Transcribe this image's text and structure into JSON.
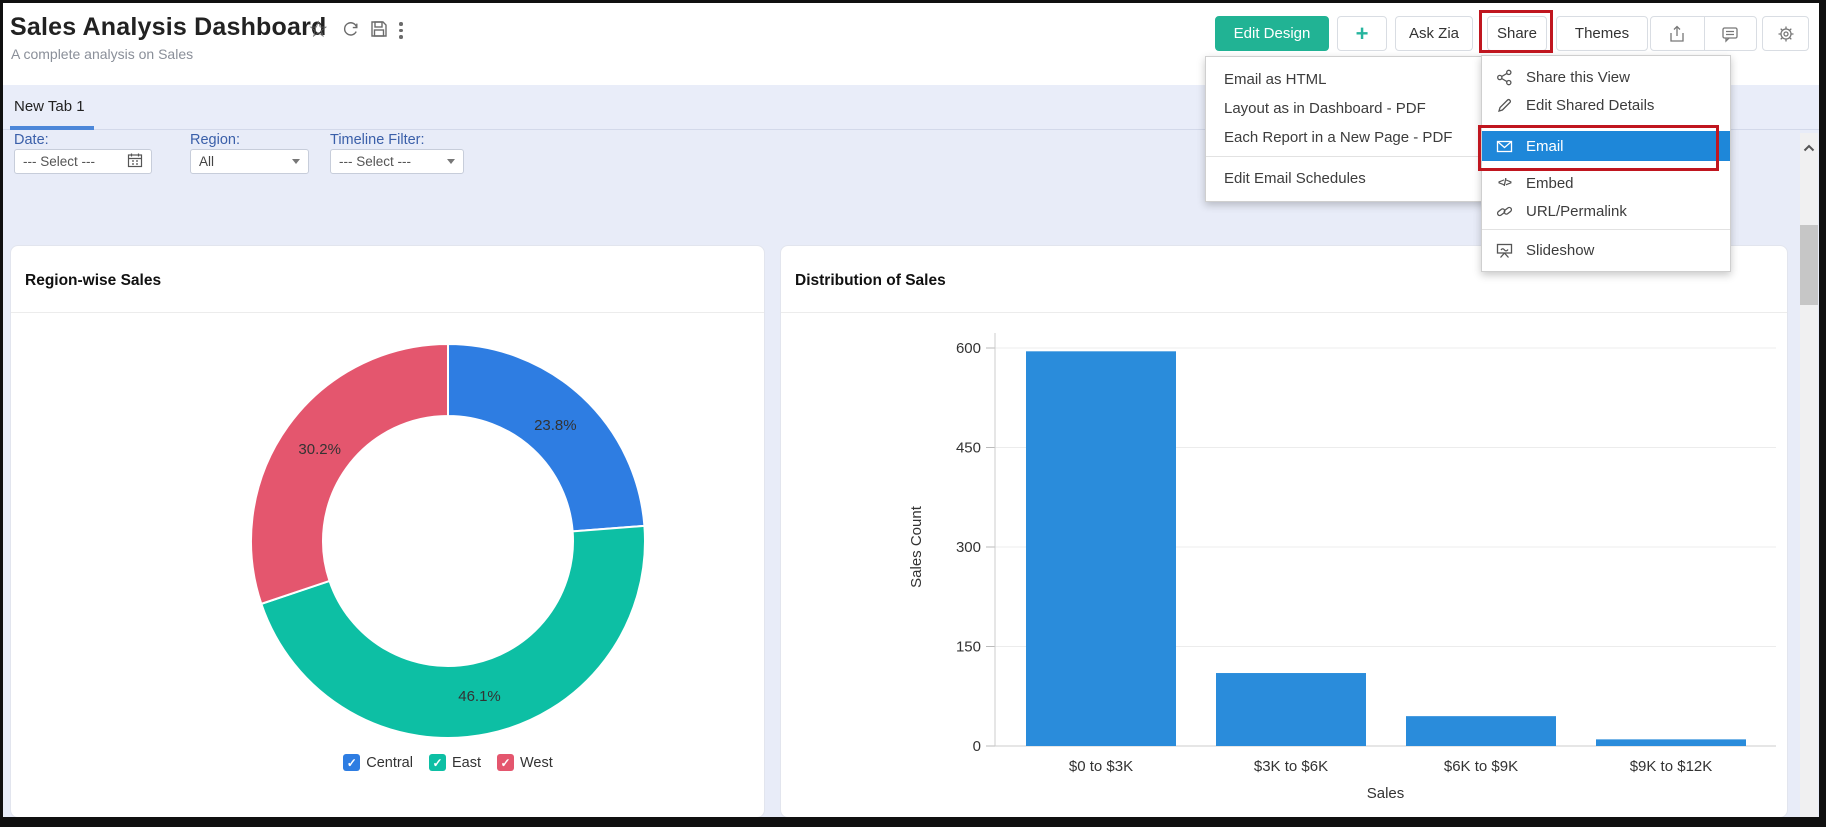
{
  "header": {
    "title": "Sales Analysis Dashboard",
    "subtitle": "A complete analysis on Sales"
  },
  "toolbar": {
    "edit_design": "Edit Design",
    "plus": "+",
    "ask_zia": "Ask Zia",
    "share": "Share",
    "themes": "Themes"
  },
  "tabs": {
    "active": "New Tab 1"
  },
  "filters": [
    {
      "label": "Date:",
      "value": "--- Select ---",
      "icon": "calendar-icon"
    },
    {
      "label": "Region:",
      "value": "All",
      "icon": "caret-down-icon"
    },
    {
      "label": "Timeline Filter:",
      "value": "--- Select ---",
      "icon": "caret-down-icon"
    }
  ],
  "email_menu": {
    "items": [
      {
        "label": "Email as HTML"
      },
      {
        "label": "Layout as in Dashboard - PDF"
      },
      {
        "label": "Each Report in a New Page - PDF"
      }
    ],
    "footer_item": {
      "label": "Edit Email Schedules"
    }
  },
  "share_menu": {
    "items": [
      {
        "label": "Share this View",
        "icon": "share-nodes-icon",
        "selected": false
      },
      {
        "label": "Edit Shared Details",
        "icon": "pencil-icon",
        "selected": false
      },
      {
        "label": "Email",
        "icon": "envelope-icon",
        "selected": true
      },
      {
        "label": "Embed",
        "icon": "code-icon",
        "selected": false
      },
      {
        "label": "URL/Permalink",
        "icon": "link-icon",
        "selected": false
      }
    ],
    "footer_item": {
      "label": "Slideshow",
      "icon": "slideshow-icon"
    },
    "selected_bg": "#1e87d9"
  },
  "annotations": {
    "color": "#c0161f",
    "boxes": [
      "share-button",
      "email-menu-item"
    ]
  },
  "chart_data": [
    {
      "type": "pie",
      "donut": true,
      "title": "Region-wise Sales",
      "labels": [
        "Central",
        "East",
        "West"
      ],
      "values": [
        23.8,
        46.1,
        30.2
      ],
      "display_labels": [
        "23.8%",
        "46.1%",
        "30.2%"
      ],
      "unit": "%",
      "colors": [
        "#2e7de2",
        "#0dbfa4",
        "#e4566e"
      ],
      "legend": [
        "Central",
        "East",
        "West"
      ],
      "legend_position": "bottom"
    },
    {
      "type": "bar",
      "title": "Distribution of Sales",
      "categories": [
        "$0 to $3K",
        "$3K to $6K",
        "$6K to $9K",
        "$9K to $12K"
      ],
      "values": [
        595,
        110,
        45,
        10
      ],
      "xlabel": "Sales",
      "ylabel": "Sales Count",
      "ylim": [
        0,
        600
      ],
      "yticks": [
        0,
        150,
        300,
        450,
        600
      ],
      "bar_color": "#2a8cdb",
      "grid": true
    }
  ]
}
